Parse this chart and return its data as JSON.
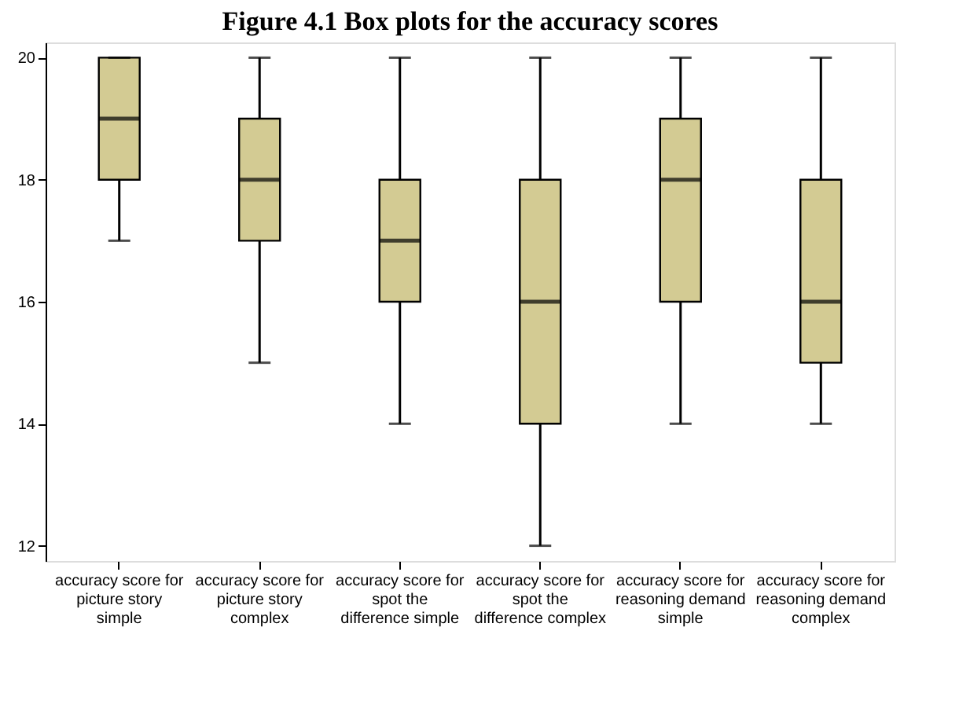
{
  "chart_data": {
    "type": "box",
    "title": "Figure 4.1 Box plots for the accuracy scores",
    "categories": [
      "accuracy score for picture story simple",
      "accuracy score for picture story complex",
      "accuracy score for spot the difference simple",
      "accuracy score for spot the difference complex",
      "accuracy score for reasoning demand simple",
      "accuracy score for reasoning demand complex"
    ],
    "boxes": [
      {
        "low": 17,
        "q1": 18,
        "median": 19,
        "q3": 20,
        "high": 20
      },
      {
        "low": 15,
        "q1": 17,
        "median": 18,
        "q3": 19,
        "high": 20
      },
      {
        "low": 14,
        "q1": 16,
        "median": 17,
        "q3": 18,
        "high": 20
      },
      {
        "low": 12,
        "q1": 14,
        "median": 16,
        "q3": 18,
        "high": 20
      },
      {
        "low": 14,
        "q1": 16,
        "median": 18,
        "q3": 19,
        "high": 20
      },
      {
        "low": 14,
        "q1": 15,
        "median": 16,
        "q3": 18,
        "high": 20
      }
    ],
    "color": "#d3cb93",
    "ylim": [
      11.75,
      20.25
    ],
    "yticks": [
      12,
      14,
      16,
      18,
      20
    ],
    "grid": false
  }
}
